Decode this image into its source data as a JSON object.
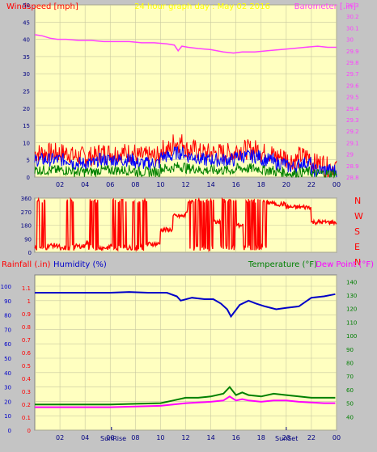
{
  "title": "24 hour graph day : May 02 2016",
  "colors": {
    "background": "#c4c4c4",
    "plot_bg": "#ffffc0",
    "grid": "#c8c8a0",
    "windspeed": "#ff0000",
    "gust": "#0000ff",
    "avg": "#008000",
    "barometer": "#ff40ff",
    "direction": "#ff0000",
    "humidity": "#0000c8",
    "temperature": "#008000",
    "dewpoint": "#ff00ff",
    "sun_label": "#000080",
    "annot": "#ffff00"
  },
  "chart_data": [
    {
      "type": "line",
      "name": "wind-barometer",
      "ylabel_left": "Windspeed [mph]",
      "ylabel_right": "Barometer [.in]",
      "ylim_left": [
        0,
        50
      ],
      "yticks_left": [
        0,
        5,
        10,
        15,
        20,
        25,
        30,
        35,
        40,
        45,
        50
      ],
      "ylim_right": [
        28.8,
        30.3
      ],
      "yticks_right": [
        "28.8",
        "28.9",
        "29",
        "29.1",
        "29.2",
        "29.3",
        "29.4",
        "29.5",
        "29.6",
        "29.7",
        "29.8",
        "29.9",
        "30",
        "30.1",
        "30.2",
        "30.3"
      ],
      "xlim": [
        0,
        24
      ],
      "xticks": [
        "02",
        "04",
        "06",
        "08",
        "10",
        "12",
        "14",
        "16",
        "18",
        "20",
        "22",
        "00"
      ],
      "series": [
        {
          "color": "#ff40ff",
          "axis": "right",
          "x": [
            0,
            0.6,
            1.2,
            1.8,
            2.5,
            3.5,
            4.5,
            5.5,
            6.5,
            7.5,
            8.5,
            9.5,
            10.5,
            11.1,
            11.4,
            11.7,
            12.2,
            13,
            14,
            15,
            15.8,
            16.5,
            17.5,
            18.5,
            19.5,
            20.5,
            21.5,
            22.5,
            23.3,
            24
          ],
          "y": [
            30.04,
            30.03,
            30.01,
            30.0,
            30.0,
            29.99,
            29.99,
            29.98,
            29.98,
            29.98,
            29.97,
            29.97,
            29.96,
            29.95,
            29.9,
            29.94,
            29.93,
            29.92,
            29.91,
            29.89,
            29.88,
            29.89,
            29.89,
            29.9,
            29.91,
            29.92,
            29.93,
            29.94,
            29.93,
            29.93
          ]
        }
      ],
      "wind": {
        "mean_speed": [
          5,
          5,
          5,
          4,
          4,
          5,
          5,
          5,
          4,
          4,
          6,
          7,
          6,
          5,
          5,
          5,
          6,
          6,
          5,
          4,
          3,
          4,
          2,
          2,
          1
        ],
        "gust_speed": [
          7,
          7,
          7,
          6,
          6,
          7,
          7,
          7,
          6,
          6,
          8,
          10,
          8,
          7,
          7,
          7,
          8,
          8,
          7,
          6,
          5,
          6,
          4,
          3,
          2
        ],
        "avg_speed": [
          2,
          2,
          2,
          1.5,
          1.5,
          2,
          2,
          2,
          1.5,
          1.5,
          2.5,
          3,
          2.5,
          2,
          2,
          2,
          2.5,
          2.5,
          2,
          1.5,
          1,
          1.5,
          1,
          1,
          0.5
        ]
      }
    },
    {
      "type": "line",
      "name": "wind-direction",
      "ylabel_right_letters": [
        "N",
        "W",
        "S",
        "E",
        "N"
      ],
      "ylim": [
        0,
        360
      ],
      "yticks": [
        0,
        90,
        180,
        270,
        360
      ],
      "xlim": [
        0,
        24
      ],
      "hourly_direction": [
        30,
        45,
        20,
        40,
        60,
        30,
        45,
        30,
        40,
        55,
        150,
        240,
        270,
        180,
        200,
        150,
        180,
        160,
        330,
        320,
        300,
        300,
        200,
        200,
        180
      ],
      "noise_hours": [
        [
          0.2,
          0.8
        ],
        [
          2.4,
          3.1
        ],
        [
          4.3,
          5
        ],
        [
          6.2,
          7.4
        ],
        [
          7.8,
          8.9
        ],
        [
          12.2,
          14.2
        ],
        [
          14.8,
          16
        ],
        [
          16.6,
          18.4
        ]
      ]
    },
    {
      "type": "line",
      "name": "rain-humidity-temp",
      "ylabel_left": "Rainfall (.in)",
      "ylabel_left2": "Humidity (%)",
      "ylabel_right": "Temperature (°F)",
      "ylabel_right2": "Dew Point (°F)",
      "ylim_left": [
        0,
        1.15
      ],
      "yticks_left_rain": [
        "0",
        "0.1",
        "0.2",
        "0.3",
        "0.4",
        "0.5",
        "0.6",
        "0.7",
        "0.8",
        "0.9",
        "1",
        "1.1"
      ],
      "yticks_left_hum": [
        0,
        10,
        20,
        30,
        40,
        50,
        60,
        70,
        80,
        90,
        100
      ],
      "ylim_right": [
        30,
        145
      ],
      "yticks_right": [
        40,
        50,
        60,
        70,
        80,
        90,
        100,
        110,
        120,
        130,
        140
      ],
      "xlim": [
        0,
        24
      ],
      "series": [
        {
          "name": "Humidity (%)",
          "color": "#0000c8",
          "axis": "left-humidity",
          "x": [
            0,
            2,
            4,
            6,
            7.5,
            9,
            10.5,
            11.3,
            11.6,
            12.5,
            13.5,
            14.2,
            14.8,
            15.3,
            15.6,
            16.3,
            17,
            17.6,
            18.3,
            19.2,
            20,
            21,
            22,
            23,
            23.9
          ],
          "y": [
            95.5,
            95.5,
            95.5,
            95.5,
            96,
            95.5,
            95.5,
            93,
            90,
            92,
            91,
            91,
            88,
            84,
            79,
            87,
            90,
            88,
            86,
            84,
            85,
            86,
            92,
            93,
            94.5
          ]
        },
        {
          "name": "Temperature (°F)",
          "color": "#008000",
          "axis": "right",
          "x": [
            0,
            2,
            4,
            6,
            8,
            10,
            11,
            12,
            13,
            14,
            15,
            15.5,
            16,
            16.5,
            17,
            18,
            19,
            20,
            21,
            22,
            23,
            23.9
          ],
          "y": [
            49,
            49,
            49,
            49,
            49.5,
            50,
            52,
            54,
            54,
            55,
            57,
            62,
            56,
            58,
            56,
            55,
            57,
            56,
            55,
            54,
            54,
            54
          ]
        },
        {
          "name": "Dew Point (°F)",
          "color": "#ff00ff",
          "axis": "right",
          "x": [
            0,
            2,
            4,
            6,
            8,
            10,
            11,
            12,
            13,
            14,
            15,
            15.5,
            16,
            16.5,
            17,
            18,
            19,
            20,
            21,
            22,
            23,
            23.9
          ],
          "y": [
            47,
            47,
            47,
            47,
            47.5,
            48,
            49,
            50,
            50.5,
            51,
            52,
            55,
            52,
            53,
            52,
            51,
            52,
            52,
            51,
            50.5,
            50,
            50
          ]
        }
      ],
      "annotations": {
        "sunrise": "SunRise",
        "sunset": "SunSet",
        "sunrise_hour": 6.1,
        "sunset_hour": 20
      }
    }
  ]
}
